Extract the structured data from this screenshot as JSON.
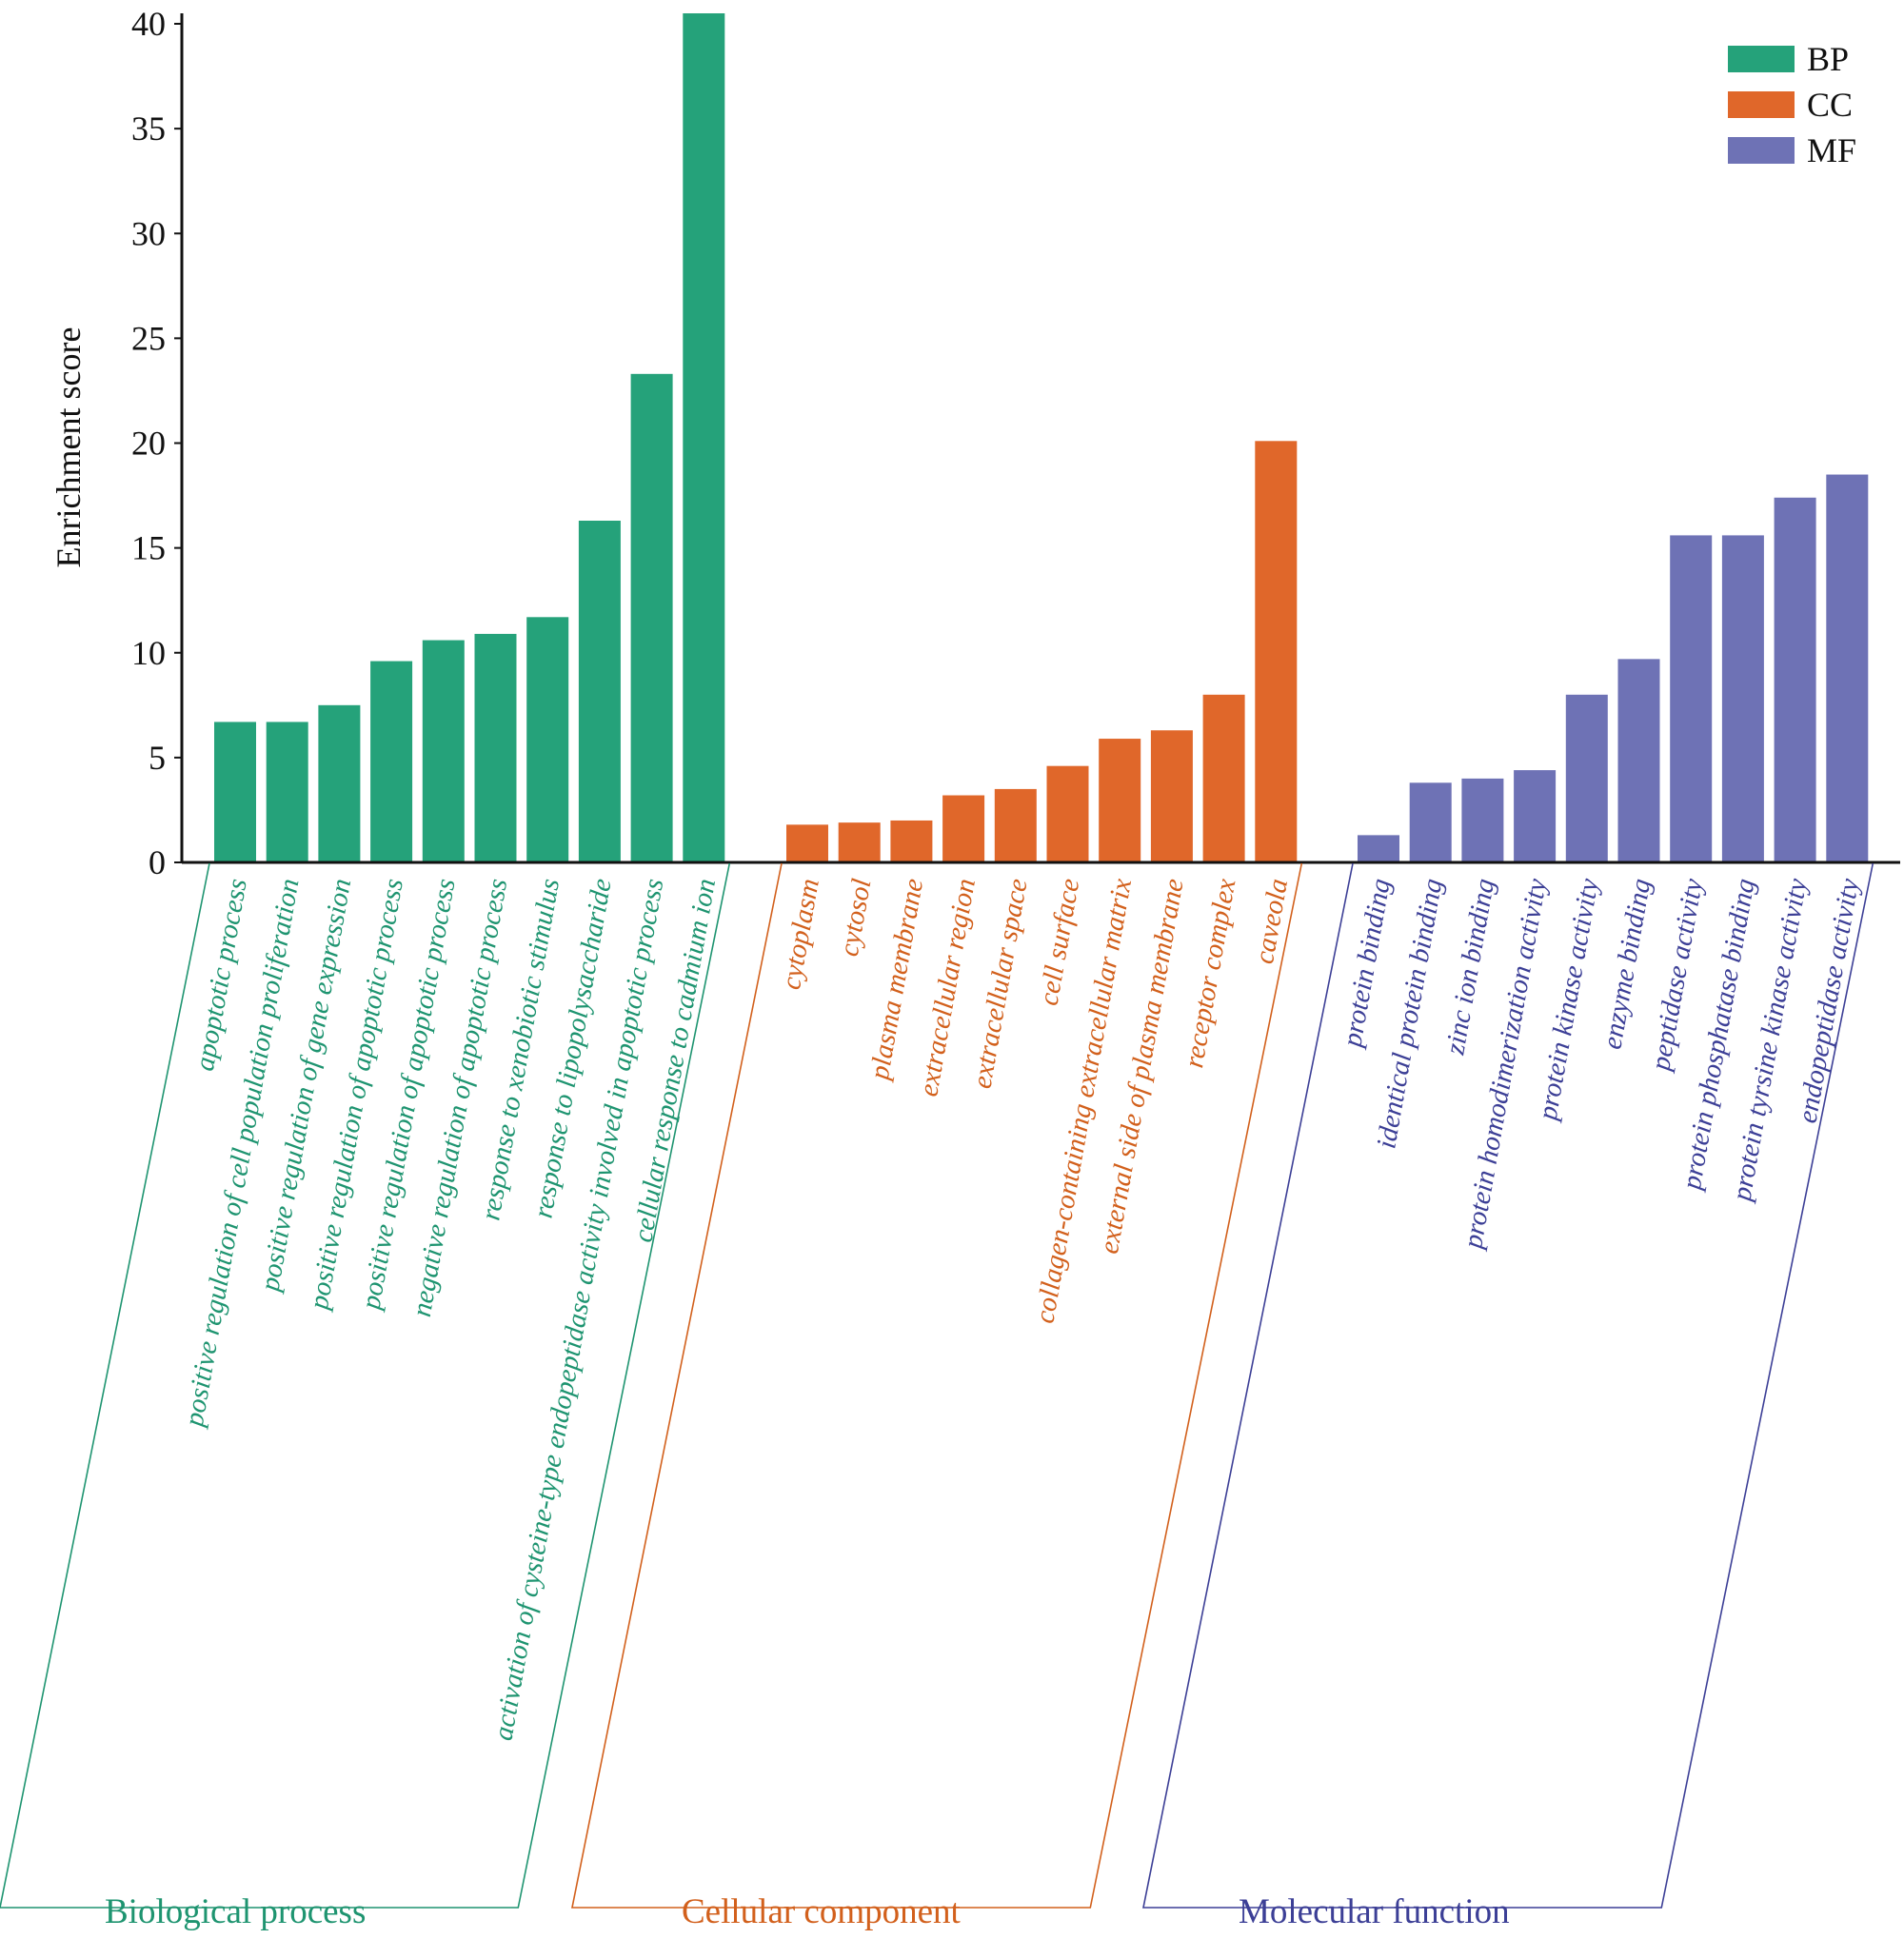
{
  "chart_data": {
    "type": "bar",
    "title": "",
    "xlabel": "",
    "ylabel": "Enrichment score",
    "ylim": [
      0,
      40.5
    ],
    "yticks": [
      0,
      5,
      10,
      15,
      20,
      25,
      30,
      35,
      40
    ],
    "grid": false,
    "legend_position": "top-right",
    "series": [
      {
        "key": "BP",
        "name": "BP",
        "group_label": "Biological process",
        "color": "#25a27a",
        "categories": [
          "apoptotic process",
          "positive regulation of cell population proliferation",
          "positive regulation of gene expression",
          "positive regulation of apoptotic process",
          "positive regulation of apoptotic process",
          "negative regulation of apoptotic process",
          "response to xenobiotic stimulus",
          "response to lipopolysaccharide",
          "activation of cysteine-type endopeptidase activity involved in apoptotic process",
          "cellular response to cadmium ion"
        ],
        "values": [
          6.7,
          6.7,
          7.5,
          9.6,
          10.6,
          10.9,
          11.7,
          16.3,
          23.3,
          40.5
        ]
      },
      {
        "key": "CC",
        "name": "CC",
        "group_label": "Cellular component",
        "color": "#e0672a",
        "categories": [
          "cytoplasm",
          "cytosol",
          "plasma membrane",
          "extracellular region",
          "extracellular space",
          "cell surface",
          "collagen-containing extracellular matrix",
          "external side of plasma membrane",
          "receptor complex",
          "caveola"
        ],
        "values": [
          1.8,
          1.9,
          2.0,
          3.2,
          3.5,
          4.6,
          5.9,
          6.3,
          8.0,
          20.1
        ]
      },
      {
        "key": "MF",
        "name": "MF",
        "group_label": "Molecular function",
        "color": "#6e72b5",
        "categories": [
          "protein binding",
          "identical protein binding",
          "zinc ion binding",
          "protein homodimerization activity",
          "protein kinase activity",
          "enzyme binding",
          "peptidase activity",
          "protein phosphatase binding",
          "protein tyrsine kinase activity",
          "endopeptidase activity"
        ],
        "values": [
          1.3,
          3.8,
          4.0,
          4.4,
          8.0,
          9.7,
          15.6,
          15.6,
          17.4,
          18.5
        ]
      }
    ],
    "label_colors": {
      "BP": "#1e9470",
      "CC": "#d2601c",
      "MF": "#3c3f96"
    }
  }
}
